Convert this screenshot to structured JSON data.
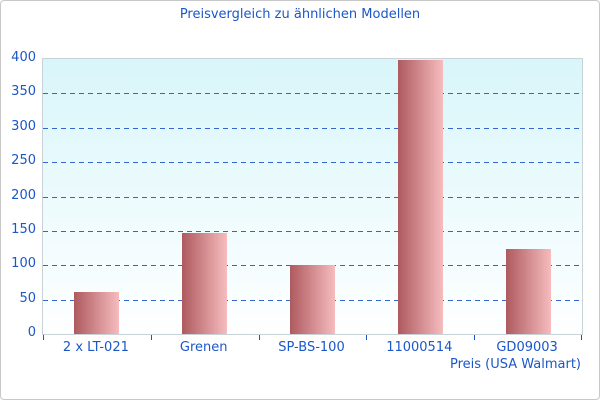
{
  "chart_data": {
    "type": "bar",
    "title": "Preisvergleich zu ähnlichen Modellen",
    "categories": [
      "2 x LT-021",
      "Grenen",
      "SP-BS-100",
      "11000514",
      "GD09003"
    ],
    "values": [
      61,
      147,
      100,
      398,
      123
    ],
    "xlabel": "Preis (USA Walmart)",
    "ylabel": "",
    "ylim": [
      0,
      400
    ],
    "ytick_step": 50,
    "grid": "horizontal-dashed",
    "legend": "none",
    "colors": {
      "text": "#1b57c8",
      "gridline": "#3366cc",
      "bar_gradient_left": "#ae5a5e",
      "bar_gradient_right": "#f6bcbe",
      "plot_bg_top": "#d8f6fa",
      "plot_bg_bottom": "#feffff",
      "plot_border": "#c9d2d6",
      "figure_border": "#c9c9c9"
    }
  }
}
